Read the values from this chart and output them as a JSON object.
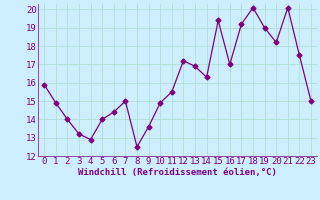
{
  "x": [
    0,
    1,
    2,
    3,
    4,
    5,
    6,
    7,
    8,
    9,
    10,
    11,
    12,
    13,
    14,
    15,
    16,
    17,
    18,
    19,
    20,
    21,
    22,
    23
  ],
  "y": [
    15.9,
    14.9,
    14.0,
    13.2,
    12.9,
    14.0,
    14.4,
    15.0,
    12.5,
    13.6,
    14.9,
    15.5,
    17.2,
    16.9,
    16.3,
    19.4,
    17.0,
    19.2,
    20.1,
    19.0,
    18.2,
    20.1,
    17.5,
    15.0
  ],
  "line_color": "#800080",
  "marker": "D",
  "marker_size": 2.5,
  "bg_color": "#cceeff",
  "grid_color": "#aaddcc",
  "xlabel": "Windchill (Refroidissement éolien,°C)",
  "ylim": [
    12,
    20
  ],
  "xlim_min": -0.5,
  "xlim_max": 23.5,
  "yticks": [
    12,
    13,
    14,
    15,
    16,
    17,
    18,
    19,
    20
  ],
  "xticks": [
    0,
    1,
    2,
    3,
    4,
    5,
    6,
    7,
    8,
    9,
    10,
    11,
    12,
    13,
    14,
    15,
    16,
    17,
    18,
    19,
    20,
    21,
    22,
    23
  ],
  "line_color_purple": "#800080",
  "axis_label_fontsize": 6.5,
  "tick_fontsize": 6.5
}
